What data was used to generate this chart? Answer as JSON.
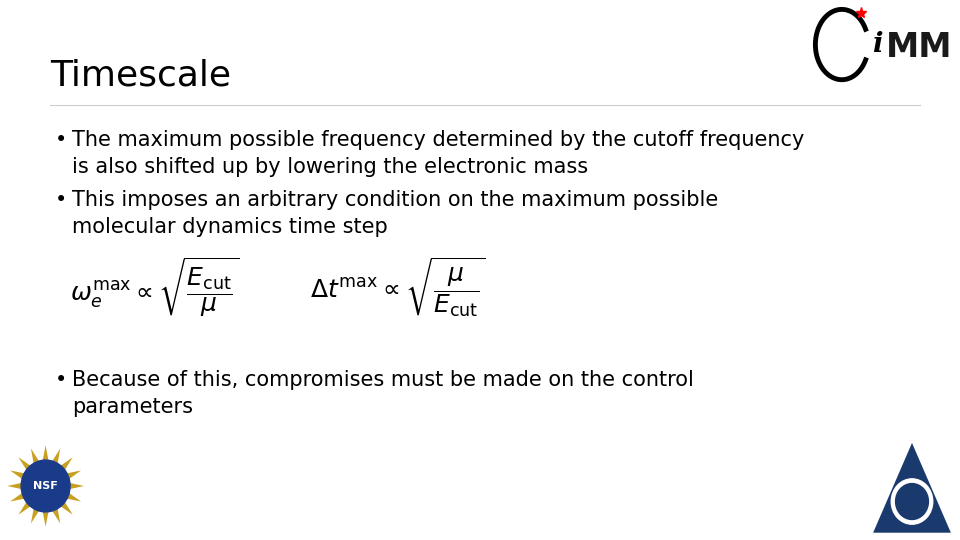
{
  "title": "Timescale",
  "bullet1_line1": "The maximum possible frequency determined by the cutoff frequency",
  "bullet1_line2": "is also shifted up by lowering the electronic mass",
  "bullet2_line1": "This imposes an arbitrary condition on the maximum possible",
  "bullet2_line2": "molecular dynamics time step",
  "formula1": "$\\omega_e^{\\mathrm{max}} \\propto \\sqrt{\\dfrac{E_{\\mathrm{cut}}}{\\mu}}$",
  "formula2": "$\\Delta t^{\\mathrm{max}} \\propto \\sqrt{\\dfrac{\\mu}{E_{\\mathrm{cut}}}}$",
  "bullet3_line1": "Because of this, compromises must be made on the control",
  "bullet3_line2": "parameters",
  "bg_color": "#ffffff",
  "text_color": "#000000",
  "title_fontsize": 26,
  "body_fontsize": 15,
  "formula_fontsize": 18
}
